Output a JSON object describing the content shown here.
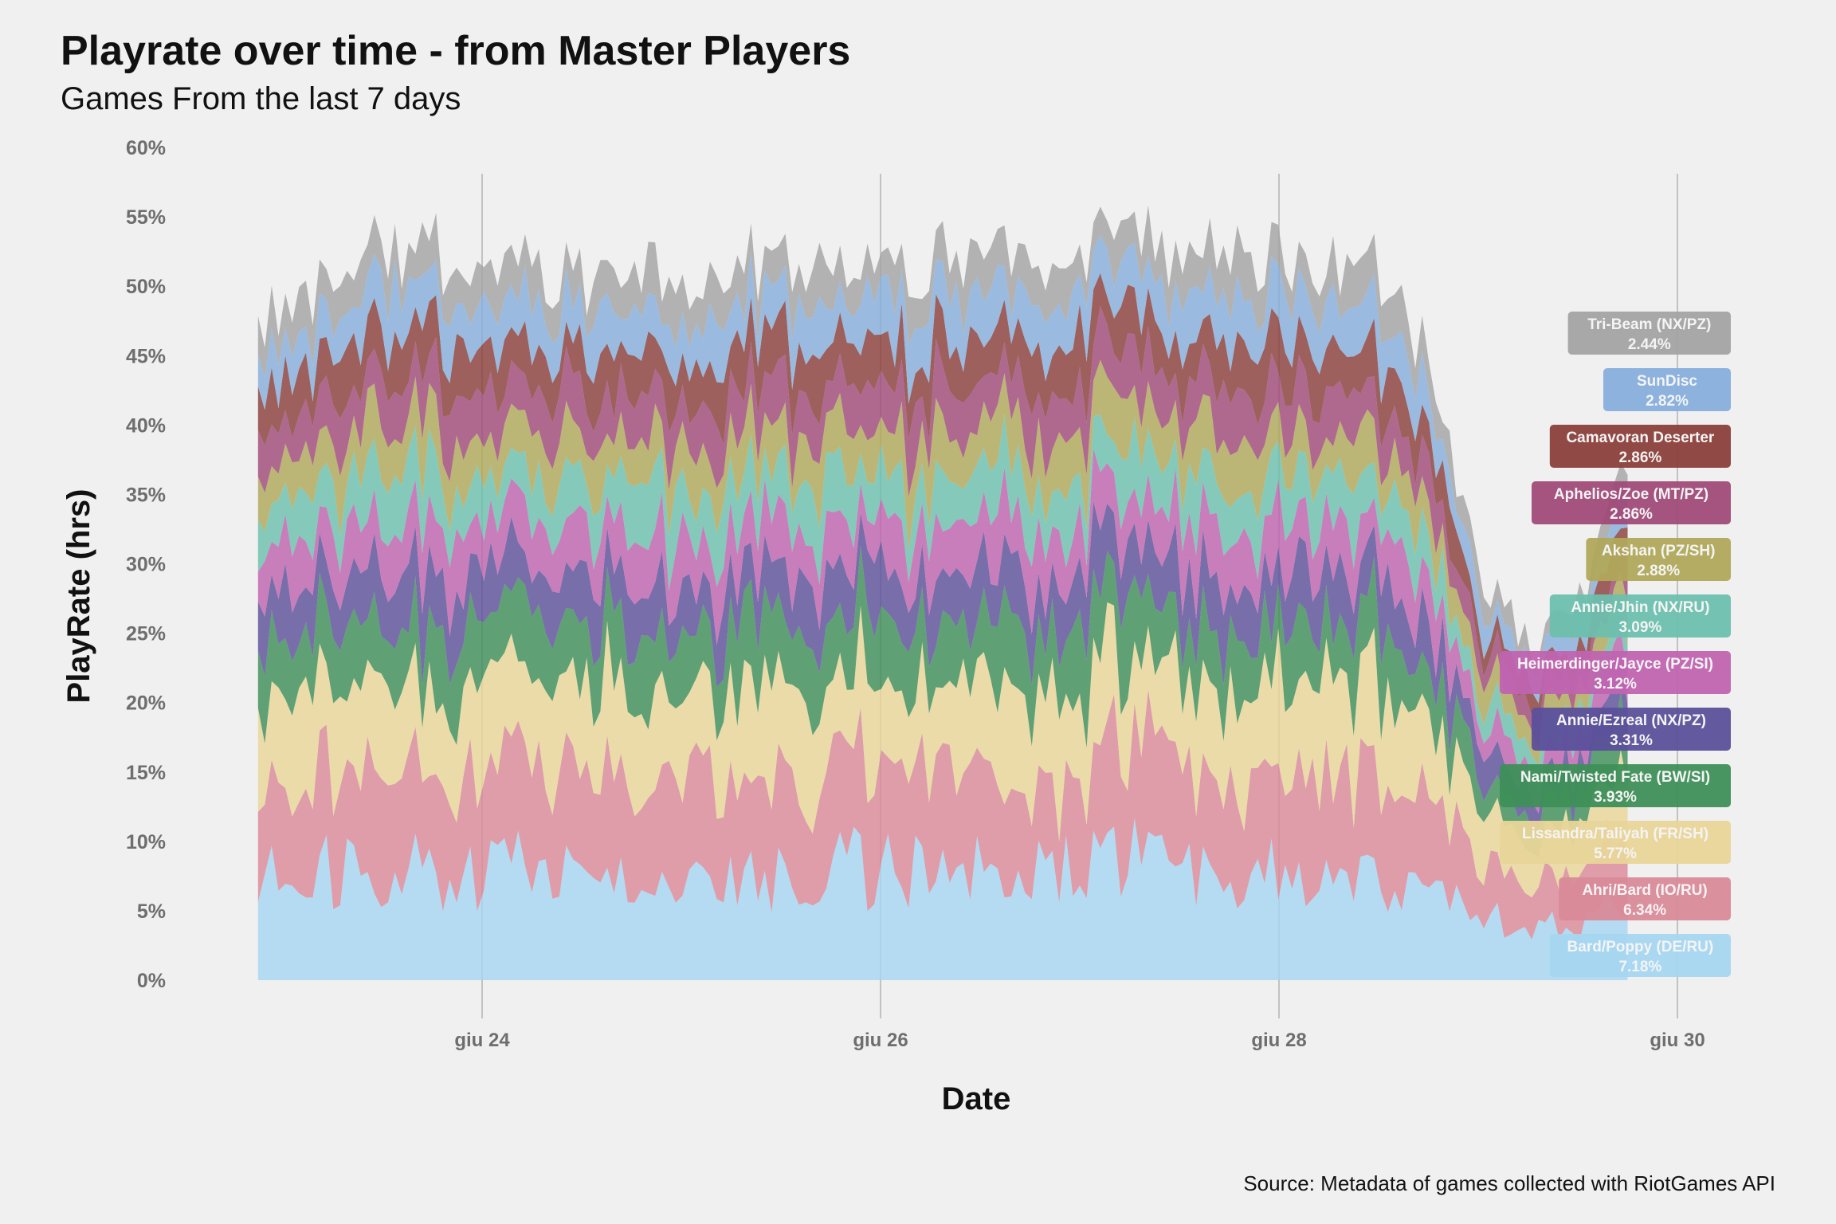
{
  "chart_data": {
    "type": "area",
    "title": "Playrate over time - from Master Players",
    "subtitle": "Games From the last 7 days",
    "xlabel": "Date",
    "ylabel": "PlayRate (hrs)",
    "caption": "Source: Metadata of games collected with RiotGames API",
    "x_range": [
      "2022-06-22T21:00",
      "2022-06-29T18:00"
    ],
    "x_ticks": [
      {
        "date": "2022-06-24",
        "label": "giu 24"
      },
      {
        "date": "2022-06-26",
        "label": "giu 26"
      },
      {
        "date": "2022-06-28",
        "label": "giu 28"
      },
      {
        "date": "2022-06-30",
        "label": "giu 30"
      }
    ],
    "ylim": [
      0,
      0.6
    ],
    "y_ticks": [
      "0%",
      "5%",
      "10%",
      "15%",
      "20%",
      "25%",
      "30%",
      "35%",
      "40%",
      "45%",
      "50%",
      "55%",
      "60%"
    ],
    "grid": "vertical major",
    "stacking": "bottom to top",
    "total_profile": {
      "dates": [
        "2022-06-22T21:00",
        "2022-06-23T12:00",
        "2022-06-24T12:00",
        "2022-06-25T12:00",
        "2022-06-26T12:00",
        "2022-06-27T12:00",
        "2022-06-28T12:00",
        "2022-06-28T18:00",
        "2022-06-29T00:00",
        "2022-06-29T06:00",
        "2022-06-29T12:00",
        "2022-06-29T18:00"
      ],
      "values": [
        0.47,
        0.53,
        0.5,
        0.52,
        0.52,
        0.53,
        0.51,
        0.45,
        0.3,
        0.24,
        0.27,
        0.37
      ]
    },
    "series": [
      {
        "name": "Bard/Poppy (DE/RU)",
        "label": "7.18%",
        "color": "#a6d6f0"
      },
      {
        "name": "Ahri/Bard (IO/RU)",
        "label": "6.34%",
        "color": "#d98a98"
      },
      {
        "name": "Lissandra/Taliyah (FR/SH)",
        "label": "5.77%",
        "color": "#e8d598"
      },
      {
        "name": "Nami/Twisted Fate (BW/SI)",
        "label": "3.93%",
        "color": "#3e8f58"
      },
      {
        "name": "Annie/Ezreal (NX/PZ)",
        "label": "3.31%",
        "color": "#5b509a"
      },
      {
        "name": "Heimerdinger/Jayce (PZ/SI)",
        "label": "3.12%",
        "color": "#c064b0"
      },
      {
        "name": "Annie/Jhin (NX/RU)",
        "label": "3.09%",
        "color": "#6dbfae"
      },
      {
        "name": "Akshan (PZ/SH)",
        "label": "2.88%",
        "color": "#b0a85a"
      },
      {
        "name": "Aphelios/Zoe (MT/PZ)",
        "label": "2.86%",
        "color": "#a04a78"
      },
      {
        "name": "Camavoran Deserter",
        "label": "2.86%",
        "color": "#8a3f3a"
      },
      {
        "name": "SunDisc",
        "label": "2.82%",
        "color": "#86aedb"
      },
      {
        "name": "Tri-Beam (NX/PZ)",
        "label": "2.44%",
        "color": "#a3a3a3"
      }
    ]
  }
}
